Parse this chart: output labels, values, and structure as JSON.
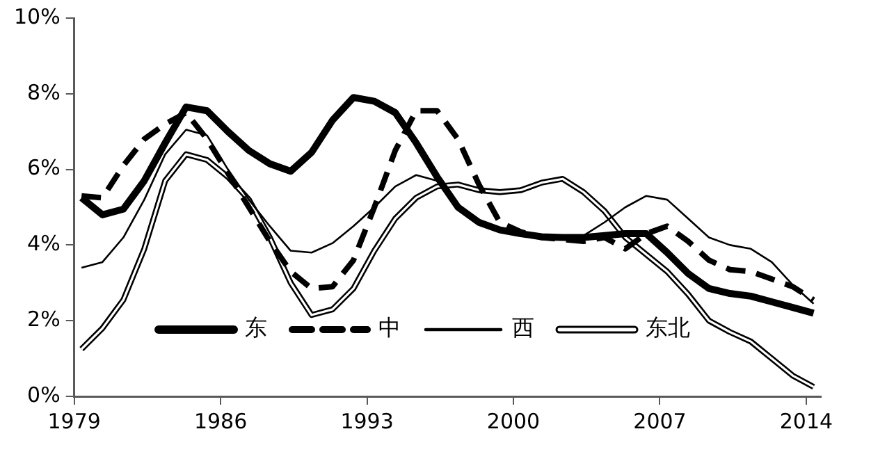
{
  "chart_data": {
    "type": "line",
    "x": [
      1979.35,
      1980.35,
      1981.35,
      1982.35,
      1983.35,
      1984.35,
      1985.35,
      1986.35,
      1987.35,
      1988.35,
      1989.35,
      1990.35,
      1991.35,
      1992.35,
      1993.35,
      1994.35,
      1995.35,
      1996.35,
      1997.35,
      1998.35,
      1999.35,
      2000.35,
      2001.35,
      2002.35,
      2003.35,
      2004.35,
      2005.35,
      2006.35,
      2007.35,
      2008.35,
      2009.35,
      2010.35,
      2011.35,
      2012.35,
      2013.35,
      2014.35
    ],
    "series": [
      {
        "name": "东",
        "color": "#000000",
        "line_style": "solid",
        "values": [
          5.25,
          4.8,
          4.95,
          5.7,
          6.7,
          7.65,
          7.55,
          7.0,
          6.5,
          6.15,
          5.95,
          6.45,
          7.3,
          7.9,
          7.8,
          7.5,
          6.7,
          5.8,
          5.0,
          4.6,
          4.4,
          4.3,
          4.22,
          4.2,
          4.2,
          4.25,
          4.3,
          4.3,
          3.8,
          3.25,
          2.85,
          2.72,
          2.65,
          2.5,
          2.35,
          2.2
        ]
      },
      {
        "name": "中",
        "color": "#000000",
        "line_style": "dashed",
        "values": [
          5.3,
          5.25,
          6.1,
          6.8,
          7.2,
          7.5,
          6.8,
          5.9,
          5.0,
          4.1,
          3.3,
          2.85,
          2.9,
          3.6,
          5.0,
          6.5,
          7.55,
          7.55,
          6.8,
          5.6,
          4.6,
          4.35,
          4.2,
          4.15,
          4.1,
          4.2,
          3.9,
          4.3,
          4.5,
          4.1,
          3.6,
          3.35,
          3.3,
          3.1,
          2.9,
          2.55
        ]
      },
      {
        "name": "西",
        "color": "#000000",
        "line_style": "solid",
        "values": [
          3.4,
          3.55,
          4.2,
          5.2,
          6.4,
          7.05,
          6.9,
          6.0,
          5.2,
          4.5,
          3.85,
          3.8,
          4.05,
          4.5,
          5.0,
          5.55,
          5.85,
          5.7,
          5.0,
          4.6,
          4.4,
          4.3,
          4.2,
          4.2,
          4.25,
          4.6,
          5.0,
          5.3,
          5.2,
          4.7,
          4.2,
          4.0,
          3.9,
          3.55,
          2.95,
          2.45
        ]
      },
      {
        "name": "东北",
        "color": "#000000",
        "line_style": "solid",
        "values": [
          1.25,
          1.8,
          2.55,
          3.9,
          5.7,
          6.4,
          6.25,
          5.8,
          5.2,
          4.2,
          3.0,
          2.15,
          2.3,
          2.85,
          3.85,
          4.7,
          5.25,
          5.55,
          5.6,
          5.45,
          5.4,
          5.45,
          5.65,
          5.75,
          5.4,
          4.9,
          4.2,
          3.75,
          3.3,
          2.7,
          2.0,
          1.7,
          1.45,
          1.0,
          0.55,
          0.25
        ]
      }
    ],
    "xlim": [
      1979,
      2014.7
    ],
    "xticks": [
      1979,
      1986,
      1993,
      2000,
      2007,
      2014
    ],
    "ylim": [
      0,
      10
    ],
    "yticks": [
      {
        "value": 0,
        "label": "0%"
      },
      {
        "value": 2,
        "label": "2%"
      },
      {
        "value": 4,
        "label": "4%"
      },
      {
        "value": 6,
        "label": "6%"
      },
      {
        "value": 8,
        "label": "8%"
      },
      {
        "value": 10,
        "label": "10%"
      }
    ],
    "grid": false,
    "legend": "bottom",
    "marker": "none"
  }
}
